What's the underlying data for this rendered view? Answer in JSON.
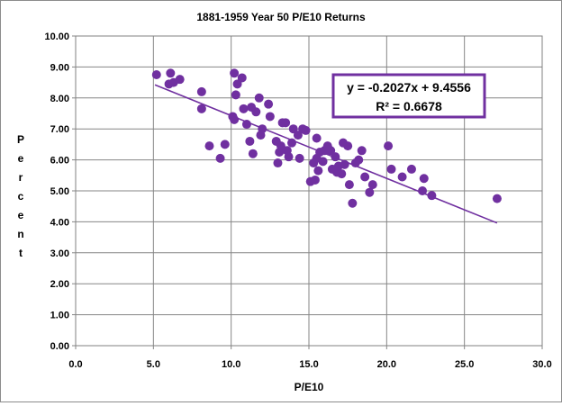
{
  "chart_data": {
    "type": "scatter",
    "title": "1881-1959 Year 50 P/E10 Returns",
    "xlabel": "P/E10",
    "ylabel": "Percent",
    "xlim": [
      0,
      30
    ],
    "ylim": [
      0,
      10
    ],
    "x_ticks": [
      "0.0",
      "5.0",
      "10.0",
      "15.0",
      "20.0",
      "25.0",
      "30.0"
    ],
    "y_ticks": [
      "0.00",
      "1.00",
      "2.00",
      "3.00",
      "4.00",
      "5.00",
      "6.00",
      "7.00",
      "8.00",
      "9.00",
      "10.00"
    ],
    "grid": true,
    "marker_color": "#7030a0",
    "trendline": {
      "slope": -0.2027,
      "intercept": 9.4556,
      "x_range": [
        5.1,
        27.1
      ],
      "color": "#7030a0",
      "equation": "y = -0.2027x + 9.4556",
      "r_squared": "R² = 0.6678"
    },
    "points": [
      [
        5.2,
        8.75
      ],
      [
        6.0,
        8.45
      ],
      [
        6.1,
        8.8
      ],
      [
        6.3,
        8.5
      ],
      [
        6.7,
        8.6
      ],
      [
        8.1,
        8.2
      ],
      [
        8.1,
        7.65
      ],
      [
        8.6,
        6.45
      ],
      [
        9.3,
        6.05
      ],
      [
        9.6,
        6.5
      ],
      [
        10.1,
        7.4
      ],
      [
        10.2,
        8.8
      ],
      [
        10.3,
        8.1
      ],
      [
        10.4,
        8.45
      ],
      [
        10.7,
        8.65
      ],
      [
        10.2,
        7.3
      ],
      [
        10.8,
        7.65
      ],
      [
        11.0,
        7.15
      ],
      [
        11.2,
        6.6
      ],
      [
        11.3,
        7.7
      ],
      [
        11.4,
        6.2
      ],
      [
        11.6,
        7.55
      ],
      [
        11.8,
        8.0
      ],
      [
        11.9,
        6.8
      ],
      [
        12.0,
        7.0
      ],
      [
        12.4,
        7.8
      ],
      [
        12.5,
        7.4
      ],
      [
        12.9,
        6.6
      ],
      [
        13.0,
        5.9
      ],
      [
        13.1,
        6.25
      ],
      [
        13.2,
        6.45
      ],
      [
        13.3,
        7.2
      ],
      [
        13.5,
        7.2
      ],
      [
        13.6,
        6.3
      ],
      [
        13.7,
        6.1
      ],
      [
        13.9,
        6.55
      ],
      [
        14.0,
        7.0
      ],
      [
        14.3,
        6.8
      ],
      [
        14.4,
        6.05
      ],
      [
        14.6,
        7.0
      ],
      [
        14.8,
        6.95
      ],
      [
        15.1,
        5.3
      ],
      [
        15.3,
        5.9
      ],
      [
        15.4,
        5.35
      ],
      [
        15.5,
        6.7
      ],
      [
        15.5,
        6.05
      ],
      [
        15.6,
        5.65
      ],
      [
        15.7,
        6.25
      ],
      [
        15.9,
        5.95
      ],
      [
        16.0,
        6.3
      ],
      [
        16.2,
        6.45
      ],
      [
        16.4,
        6.3
      ],
      [
        16.5,
        5.7
      ],
      [
        16.7,
        6.1
      ],
      [
        16.8,
        5.6
      ],
      [
        16.9,
        5.8
      ],
      [
        17.1,
        5.55
      ],
      [
        17.2,
        6.55
      ],
      [
        17.3,
        5.85
      ],
      [
        17.5,
        6.45
      ],
      [
        17.6,
        5.2
      ],
      [
        17.8,
        4.6
      ],
      [
        18.0,
        5.9
      ],
      [
        18.2,
        6.0
      ],
      [
        18.4,
        6.3
      ],
      [
        18.6,
        5.45
      ],
      [
        18.9,
        4.95
      ],
      [
        19.1,
        5.2
      ],
      [
        20.1,
        6.45
      ],
      [
        20.3,
        5.7
      ],
      [
        21.0,
        5.45
      ],
      [
        21.6,
        5.7
      ],
      [
        22.3,
        5.0
      ],
      [
        22.4,
        5.4
      ],
      [
        22.9,
        4.85
      ],
      [
        27.1,
        4.75
      ]
    ]
  }
}
